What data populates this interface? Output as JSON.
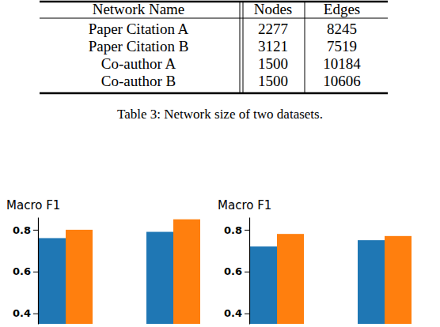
{
  "table": {
    "header": [
      "Network Name",
      "Nodes",
      "Edges"
    ],
    "rows": [
      [
        "Paper Citation A",
        2277,
        8245
      ],
      [
        "Paper Citation B",
        3121,
        7519
      ],
      [
        "Co-author A",
        1500,
        10184
      ],
      [
        "Co-author B",
        1500,
        10606
      ]
    ]
  },
  "caption": "Table 3: Network size of two datasets.",
  "chart_data": [
    {
      "type": "bar",
      "y_label": "Macro F1",
      "categories": [
        null,
        null
      ],
      "series": [
        {
          "color": "#1f77b4",
          "values": [
            0.76,
            0.79
          ]
        },
        {
          "color": "#ff7f0e",
          "values": [
            0.8,
            0.85
          ]
        }
      ],
      "ylim": [
        0.35,
        0.86
      ],
      "yticks": [
        0.4,
        0.6,
        0.8
      ]
    },
    {
      "type": "bar",
      "y_label": "Macro F1",
      "categories": [
        null,
        null
      ],
      "series": [
        {
          "color": "#1f77b4",
          "values": [
            0.72,
            0.75
          ]
        },
        {
          "color": "#ff7f0e",
          "values": [
            0.78,
            0.77
          ]
        }
      ],
      "ylim": [
        0.35,
        0.86
      ],
      "yticks": [
        0.4,
        0.6,
        0.8
      ]
    }
  ]
}
